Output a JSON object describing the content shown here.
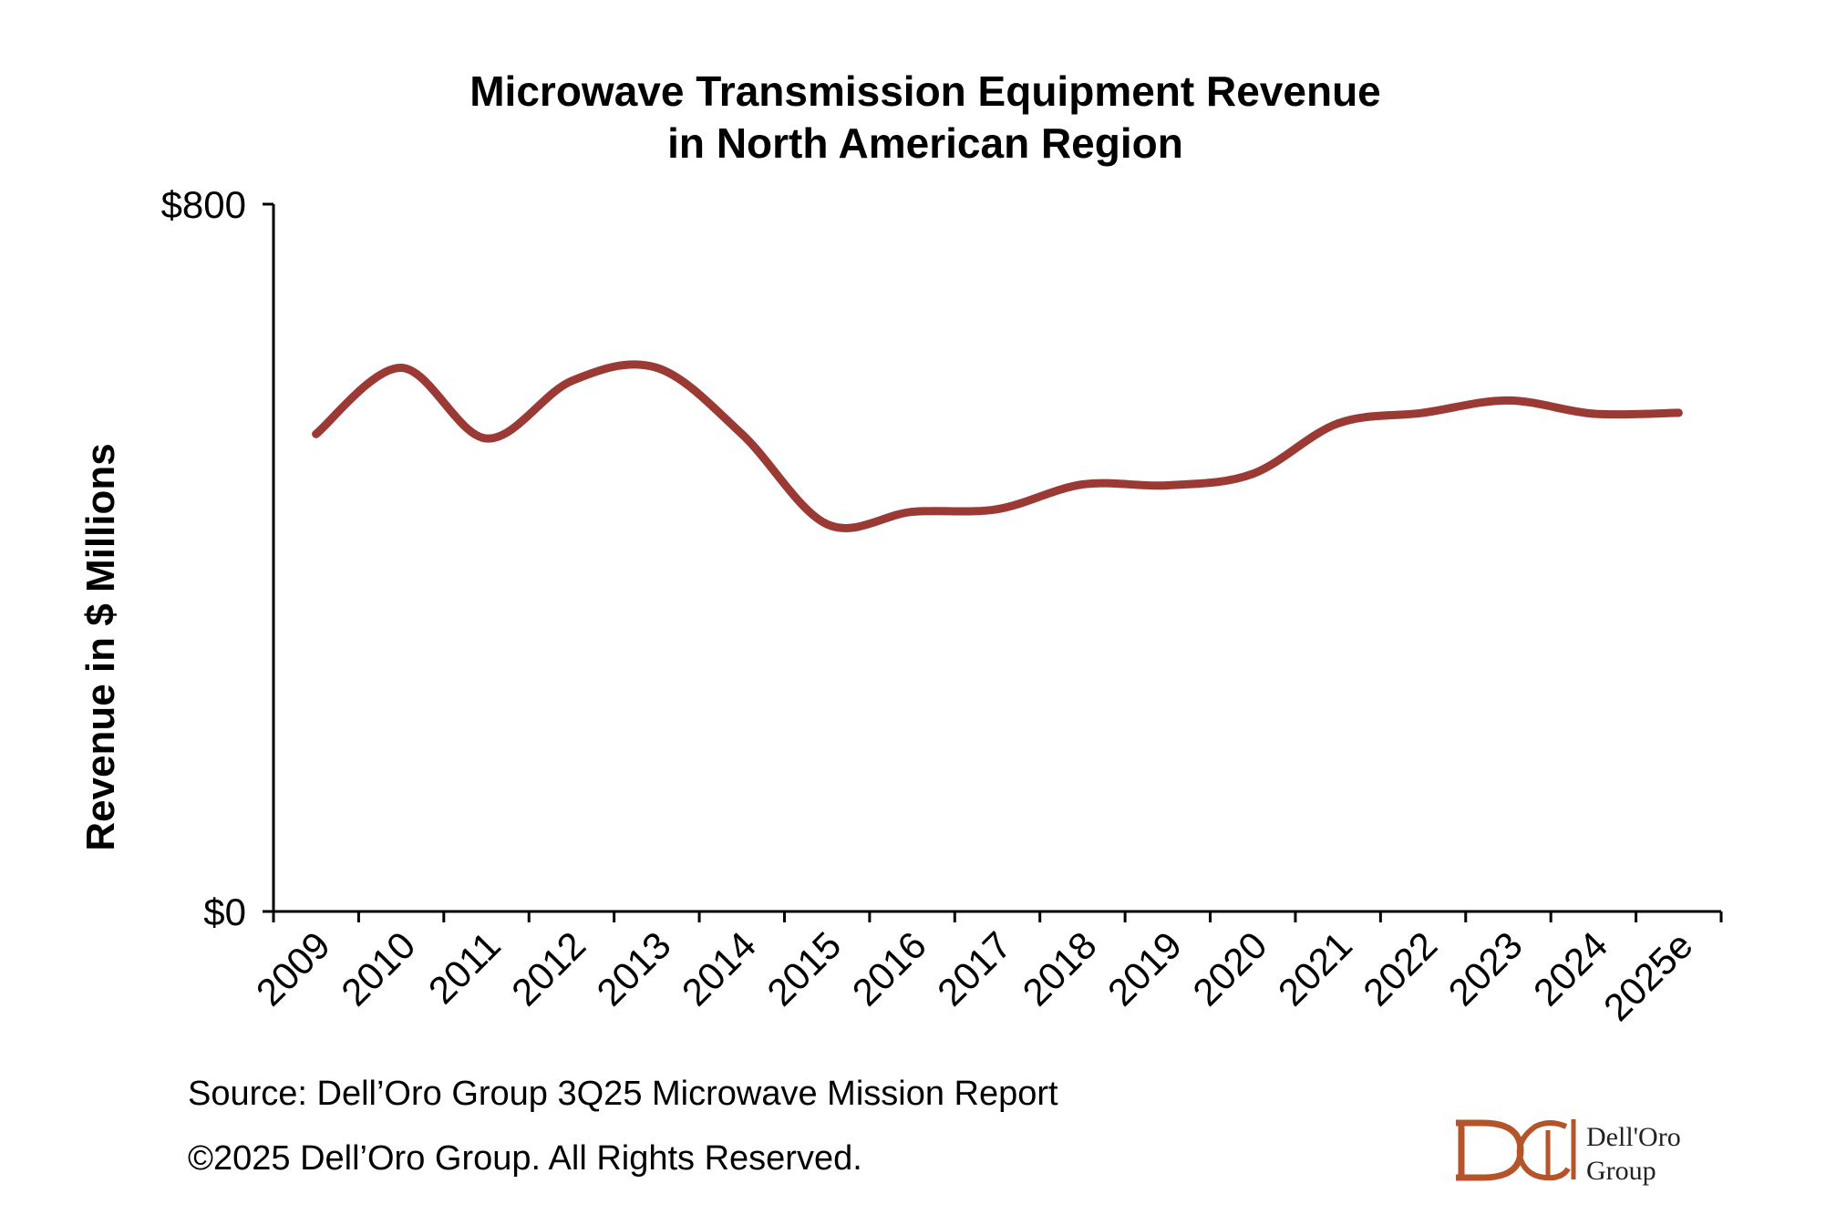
{
  "chart_data": {
    "type": "line",
    "title_line1": "Microwave Transmission Equipment Revenue",
    "title_line2": "in North American Region",
    "xlabel": "",
    "ylabel": "Revenue in $ Millions",
    "ylim": [
      0,
      800
    ],
    "y_ticks": [
      "$0",
      "$800"
    ],
    "y_tick_values": [
      0,
      800
    ],
    "categories": [
      "2009",
      "2010",
      "2011",
      "2012",
      "2013",
      "2014",
      "2015",
      "2016",
      "2017",
      "2018",
      "2019",
      "2020",
      "2021",
      "2022",
      "2023",
      "2024",
      "2025e"
    ],
    "series": [
      {
        "values": [
          540,
          615,
          535,
          600,
          615,
          540,
          438,
          452,
          455,
          483,
          482,
          495,
          552,
          564,
          578,
          563,
          564
        ]
      }
    ],
    "line_color": "#9b3a35",
    "grid": false,
    "legend": "none"
  },
  "source_note": "Source: Dell’Oro Group 3Q25 Microwave Mission Report",
  "copyright_note": "©2025 Dell’Oro Group. All Rights Reserved.",
  "logo": {
    "line1": "Dell'Oro",
    "line2": "Group",
    "color": "#b5532a"
  }
}
